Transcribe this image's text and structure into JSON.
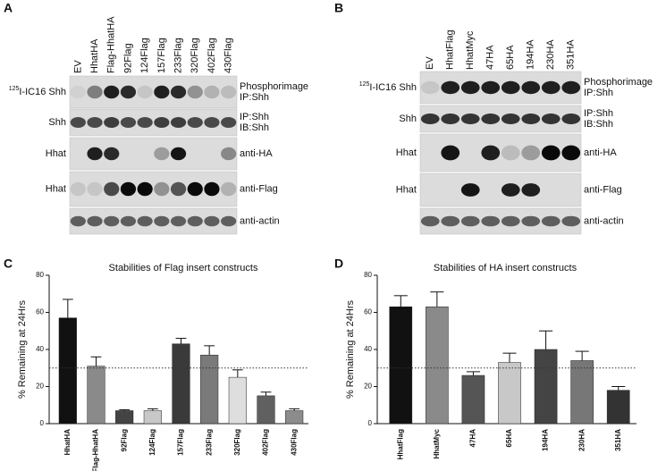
{
  "blots": [
    {
      "panel_label": "A",
      "lanes": [
        "EV",
        "HhatHA",
        "Flag-HhatHA",
        "92Flag",
        "124Flag",
        "157Flag",
        "233Flag",
        "320Flag",
        "402Flag",
        "430Flag"
      ],
      "rows": [
        {
          "left_sup": "125",
          "left": "I-IC16 Shh",
          "right": [
            "Phosphorimage",
            "IP:Shh"
          ]
        },
        {
          "left": "Shh",
          "right": [
            "IP:Shh",
            "IB:Shh"
          ]
        },
        {
          "left": "Hhat",
          "right": [
            "anti-HA"
          ]
        },
        {
          "left": "Hhat",
          "right": [
            "anti-Flag"
          ]
        },
        {
          "right": [
            "anti-actin"
          ]
        }
      ]
    },
    {
      "panel_label": "B",
      "lanes": [
        "EV",
        "HhatFlag",
        "HhatMyc",
        "47HA",
        "65HA",
        "194HA",
        "230HA",
        "351HA"
      ],
      "rows": [
        {
          "left_sup": "125",
          "left": "I-IC16 Shh",
          "right": [
            "Phosphorimage",
            "IP:Shh"
          ]
        },
        {
          "left": "Shh",
          "right": [
            "IP:Shh",
            "IB:Shh"
          ]
        },
        {
          "left": "Hhat",
          "right": [
            "anti-HA"
          ]
        },
        {
          "left": "Hhat",
          "right": [
            "anti-Flag"
          ]
        },
        {
          "right": [
            "anti-actin"
          ]
        }
      ]
    }
  ],
  "chart_data": [
    {
      "type": "bar",
      "panel_label": "C",
      "title": "Stabilities of Flag insert constructs",
      "y_label": "% Remaining at 24Hrs",
      "categories": [
        "HhatHA",
        "Flag-HhatHA",
        "92Flag",
        "124Flag",
        "157Flag",
        "233Flag",
        "320Flag",
        "402Flag",
        "430Flag"
      ],
      "values": [
        57,
        31,
        7,
        7,
        43,
        37,
        25,
        15,
        7
      ],
      "errors": [
        10,
        5,
        0.5,
        1,
        3,
        5,
        4,
        2,
        1
      ],
      "colors": [
        "#111111",
        "#8a8a8a",
        "#444444",
        "#c8c8c8",
        "#3a3a3a",
        "#7a7a7a",
        "#dedede",
        "#606060",
        "#8c8c8c"
      ],
      "reference_line": 30,
      "ylim": [
        0,
        80
      ],
      "yticks": [
        0,
        20,
        40,
        60,
        80
      ],
      "grid": false
    },
    {
      "type": "bar",
      "panel_label": "D",
      "title": "Stabilities of HA insert constructs",
      "y_label": "% Remaining at 24Hrs",
      "categories": [
        "HhatFlag",
        "HhatMyc",
        "47HA",
        "65HA",
        "194HA",
        "230HA",
        "351HA"
      ],
      "values": [
        63,
        63,
        26,
        33,
        40,
        34,
        18
      ],
      "errors": [
        6,
        8,
        2,
        5,
        10,
        5,
        2
      ],
      "colors": [
        "#111111",
        "#8a8a8a",
        "#555555",
        "#c8c8c8",
        "#444444",
        "#777777",
        "#333333"
      ],
      "reference_line": 30,
      "ylim": [
        0,
        80
      ],
      "yticks": [
        0,
        20,
        40,
        60,
        80
      ],
      "grid": false
    }
  ]
}
